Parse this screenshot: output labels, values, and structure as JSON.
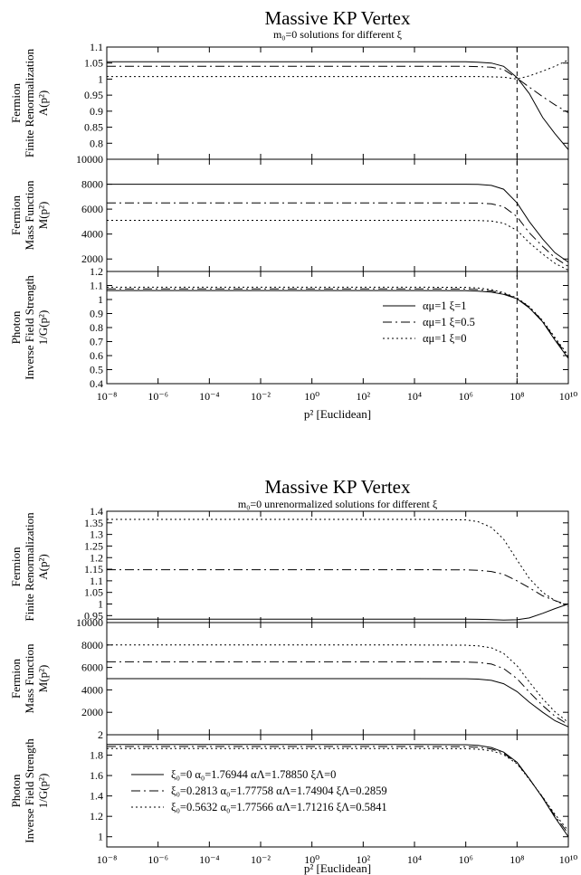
{
  "figures": [
    {
      "title": "Massive KP Vertex",
      "subtitle": "m₀=0 solutions for different ξ",
      "xlabel": "p² [Euclidean]",
      "x_ticks": [
        "10⁻⁸",
        "10⁻⁶",
        "10⁻⁴",
        "10⁻²",
        "10⁰",
        "10²",
        "10⁴",
        "10⁶",
        "10⁸",
        "10¹⁰"
      ],
      "vline_label": "",
      "panels": [
        {
          "ylabel": [
            "Fermion",
            "Finite Renormalization",
            "A(p²)"
          ],
          "ticks": [
            "0.8",
            "0.85",
            "0.9",
            "0.95",
            "1",
            "1.05",
            "1.1"
          ]
        },
        {
          "ylabel": [
            "Fermion",
            "Mass Function",
            "M(p²)"
          ],
          "ticks": [
            "2000",
            "4000",
            "6000",
            "8000",
            "10000"
          ]
        },
        {
          "ylabel": [
            "Photon",
            "Inverse Field Strength",
            "1/G(p²)"
          ],
          "ticks": [
            "0.4",
            "0.5",
            "0.6",
            "0.7",
            "0.8",
            "0.9",
            "1",
            "1.1",
            "1.2"
          ]
        }
      ],
      "legend": [
        "αμ=1 ξ=1",
        "αμ=1 ξ=0.5",
        "αμ=1 ξ=0"
      ]
    },
    {
      "title": "Massive KP Vertex",
      "subtitle": "m₀=0 unrenormalized solutions for different ξ",
      "xlabel": "p² [Euclidean]",
      "x_ticks": [
        "10⁻⁸",
        "10⁻⁶",
        "10⁻⁴",
        "10⁻²",
        "10⁰",
        "10²",
        "10⁴",
        "10⁶",
        "10⁸",
        "10¹⁰"
      ],
      "panels": [
        {
          "ylabel": [
            "Fermion",
            "Finite Renormalization",
            "A(p²)"
          ],
          "ticks": [
            "0.95",
            "1",
            "1.05",
            "1.1",
            "1.15",
            "1.2",
            "1.25",
            "1.3",
            "1.35",
            "1.4"
          ]
        },
        {
          "ylabel": [
            "Fermion",
            "Mass Function",
            "M(p²)"
          ],
          "ticks": [
            "2000",
            "4000",
            "6000",
            "8000",
            "10000"
          ]
        },
        {
          "ylabel": [
            "Photon",
            "Inverse Field Strength",
            "1/G(p²)"
          ],
          "ticks": [
            "1",
            "1.2",
            "1.4",
            "1.6",
            "1.8",
            "2"
          ]
        }
      ],
      "legend": [
        "ξ₀=0       α₀=1.76944 αΛ=1.78850 ξΛ=0",
        "ξ₀=0.2813 α₀=1.77758 αΛ=1.74904 ξΛ=0.2859",
        "ξ₀=0.5632 α₀=1.77566 αΛ=1.71216 ξΛ=0.5841"
      ]
    }
  ],
  "chart_data": [
    {
      "type": "line",
      "title": "Massive KP Vertex",
      "subtitle": "m₀=0 solutions for different ξ",
      "xlabel": "p² [Euclidean]",
      "xscale": "log",
      "xlim": [
        1e-08,
        10000000000.0
      ],
      "vline_x": 100000000.0,
      "x": [
        1e-08,
        1e-06,
        0.0001,
        0.01,
        1,
        100.0,
        10000.0,
        1000000.0,
        3000000.0,
        10000000.0,
        30000000.0,
        100000000.0,
        300000000.0,
        1000000000.0,
        3000000000.0,
        10000000000.0
      ],
      "panels": [
        {
          "ylabel": "Fermion Finite Renormalization A(p²)",
          "ylim": [
            0.75,
            1.1
          ],
          "series": [
            {
              "name": "αμ=1 ξ=1",
              "dash": "solid",
              "values": [
                1.054,
                1.054,
                1.054,
                1.054,
                1.054,
                1.054,
                1.054,
                1.054,
                1.053,
                1.05,
                1.04,
                1.005,
                0.955,
                0.88,
                0.83,
                0.78
              ]
            },
            {
              "name": "αμ=1 ξ=0.5",
              "dash": "dashdot",
              "values": [
                1.04,
                1.04,
                1.04,
                1.04,
                1.04,
                1.04,
                1.04,
                1.04,
                1.039,
                1.037,
                1.03,
                1.003,
                0.975,
                0.945,
                0.92,
                0.895
              ]
            },
            {
              "name": "αμ=1 ξ=0",
              "dash": "dot",
              "values": [
                1.008,
                1.008,
                1.008,
                1.008,
                1.008,
                1.008,
                1.008,
                1.008,
                1.008,
                1.007,
                1.006,
                1.0,
                1.01,
                1.025,
                1.04,
                1.06
              ]
            }
          ]
        },
        {
          "ylabel": "Fermion Mass Function M(p²)",
          "ylim": [
            1000,
            10000
          ],
          "series": [
            {
              "name": "αμ=1 ξ=1",
              "dash": "solid",
              "values": [
                8000,
                8000,
                8000,
                8000,
                8000,
                8000,
                8000,
                7995,
                7980,
                7900,
                7600,
                6500,
                5000,
                3600,
                2500,
                1750
              ]
            },
            {
              "name": "αμ=1 ξ=0.5",
              "dash": "dashdot",
              "values": [
                6500,
                6500,
                6500,
                6500,
                6500,
                6500,
                6500,
                6496,
                6485,
                6420,
                6200,
                5400,
                4100,
                3000,
                2100,
                1400
              ]
            },
            {
              "name": "αμ=1 ξ=0",
              "dash": "dot",
              "values": [
                5100,
                5100,
                5100,
                5100,
                5100,
                5100,
                5100,
                5097,
                5088,
                5040,
                4870,
                4300,
                3300,
                2400,
                1650,
                1100
              ]
            }
          ]
        },
        {
          "ylabel": "Photon Inverse Field Strength 1/G(p²)",
          "ylim": [
            0.4,
            1.2
          ],
          "series": [
            {
              "name": "αμ=1 ξ=1",
              "dash": "solid",
              "values": [
                1.064,
                1.064,
                1.064,
                1.064,
                1.064,
                1.064,
                1.064,
                1.063,
                1.06,
                1.052,
                1.037,
                1.005,
                0.94,
                0.84,
                0.71,
                0.58
              ]
            },
            {
              "name": "αμ=1 ξ=0.5",
              "dash": "dashdot",
              "values": [
                1.076,
                1.076,
                1.076,
                1.076,
                1.076,
                1.076,
                1.076,
                1.075,
                1.071,
                1.061,
                1.043,
                1.008,
                0.945,
                0.845,
                0.72,
                0.59
              ]
            },
            {
              "name": "αμ=1 ξ=0",
              "dash": "dot",
              "values": [
                1.088,
                1.088,
                1.088,
                1.088,
                1.088,
                1.088,
                1.088,
                1.087,
                1.082,
                1.07,
                1.049,
                1.011,
                0.95,
                0.85,
                0.73,
                0.6
              ]
            }
          ]
        }
      ]
    },
    {
      "type": "line",
      "title": "Massive KP Vertex",
      "subtitle": "m₀=0 unrenormalized solutions for different ξ",
      "xlabel": "p² [Euclidean]",
      "xscale": "log",
      "xlim": [
        1e-08,
        10000000000.0
      ],
      "x": [
        1e-08,
        1e-06,
        0.0001,
        0.01,
        1,
        100.0,
        10000.0,
        1000000.0,
        3000000.0,
        10000000.0,
        30000000.0,
        100000000.0,
        300000000.0,
        1000000000.0,
        3000000000.0,
        10000000000.0
      ],
      "panels": [
        {
          "ylabel": "Fermion Finite Renormalization A(p²)",
          "ylim": [
            0.92,
            1.4
          ],
          "series": [
            {
              "name": "ξ₀=0 α₀=1.76944 αΛ=1.78850 ξΛ=0",
              "dash": "solid",
              "values": [
                0.935,
                0.935,
                0.935,
                0.935,
                0.935,
                0.935,
                0.935,
                0.935,
                0.934,
                0.933,
                0.931,
                0.932,
                0.94,
                0.96,
                0.98,
                1.0
              ]
            },
            {
              "name": "ξ₀=0.2813 α₀=1.77758 αΛ=1.74904 ξΛ=0.2859",
              "dash": "dashdot",
              "values": [
                1.148,
                1.148,
                1.148,
                1.148,
                1.148,
                1.148,
                1.148,
                1.147,
                1.145,
                1.14,
                1.128,
                1.1,
                1.07,
                1.035,
                1.015,
                0.995
              ]
            },
            {
              "name": "ξ₀=0.5632 α₀=1.77566 αΛ=1.71216 ξΛ=0.5841",
              "dash": "dot",
              "values": [
                1.365,
                1.365,
                1.365,
                1.365,
                1.365,
                1.365,
                1.365,
                1.363,
                1.355,
                1.33,
                1.28,
                1.19,
                1.11,
                1.05,
                1.015,
                0.99
              ]
            }
          ]
        },
        {
          "ylabel": "Fermion Mass Function M(p²)",
          "ylim": [
            0,
            10000
          ],
          "series": [
            {
              "name": "ξ₀=0 α₀=1.76944 αΛ=1.78850 ξΛ=0",
              "dash": "solid",
              "values": [
                5000,
                5000,
                5000,
                5000,
                5000,
                5000,
                5000,
                4990,
                4960,
                4850,
                4550,
                3850,
                2900,
                2000,
                1250,
                700
              ]
            },
            {
              "name": "ξ₀=0.2813 α₀=1.77758 αΛ=1.74904 ξΛ=0.2859",
              "dash": "dashdot",
              "values": [
                6500,
                6500,
                6500,
                6500,
                6500,
                6500,
                6500,
                6485,
                6440,
                6300,
                5900,
                5000,
                3800,
                2600,
                1650,
                900
              ]
            },
            {
              "name": "ξ₀=0.5632 α₀=1.77566 αΛ=1.71216 ξΛ=0.5841",
              "dash": "dot",
              "values": [
                8000,
                8000,
                8000,
                8000,
                8000,
                8000,
                8000,
                7980,
                7920,
                7750,
                7250,
                6150,
                4700,
                3200,
                2050,
                1100
              ]
            }
          ]
        },
        {
          "ylabel": "Photon Inverse Field Strength 1/G(p²)",
          "ylim": [
            0.9,
            2.0
          ],
          "series": [
            {
              "name": "ξ₀=0 α₀=1.76944 αΛ=1.78850 ξΛ=0",
              "dash": "solid",
              "values": [
                1.905,
                1.905,
                1.905,
                1.905,
                1.905,
                1.905,
                1.905,
                1.902,
                1.895,
                1.875,
                1.83,
                1.73,
                1.57,
                1.38,
                1.19,
                1.0
              ]
            },
            {
              "name": "ξ₀=0.2813 α₀=1.77758 αΛ=1.74904 ξΛ=0.2859",
              "dash": "dashdot",
              "values": [
                1.885,
                1.885,
                1.885,
                1.885,
                1.885,
                1.885,
                1.885,
                1.883,
                1.877,
                1.86,
                1.818,
                1.722,
                1.566,
                1.385,
                1.205,
                1.03
              ]
            },
            {
              "name": "ξ₀=0.5632 α₀=1.77566 αΛ=1.71216 ξΛ=0.5841",
              "dash": "dot",
              "values": [
                1.865,
                1.865,
                1.865,
                1.865,
                1.865,
                1.865,
                1.865,
                1.863,
                1.858,
                1.843,
                1.805,
                1.715,
                1.563,
                1.39,
                1.22,
                1.06
              ]
            }
          ]
        }
      ]
    }
  ]
}
